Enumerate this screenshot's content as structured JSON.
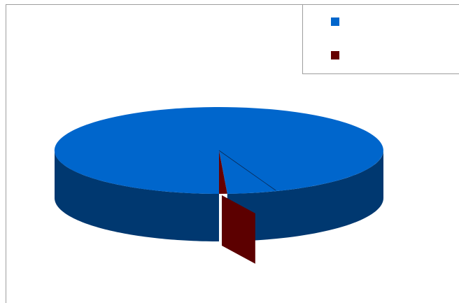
{
  "chart_data": {
    "type": "pie",
    "style": "3d",
    "legend": "top-right",
    "slices": [
      {
        "label": "",
        "value": 99.2,
        "color": "#0066CC"
      },
      {
        "label": "",
        "value": 0.8,
        "color": "#660000"
      }
    ]
  }
}
